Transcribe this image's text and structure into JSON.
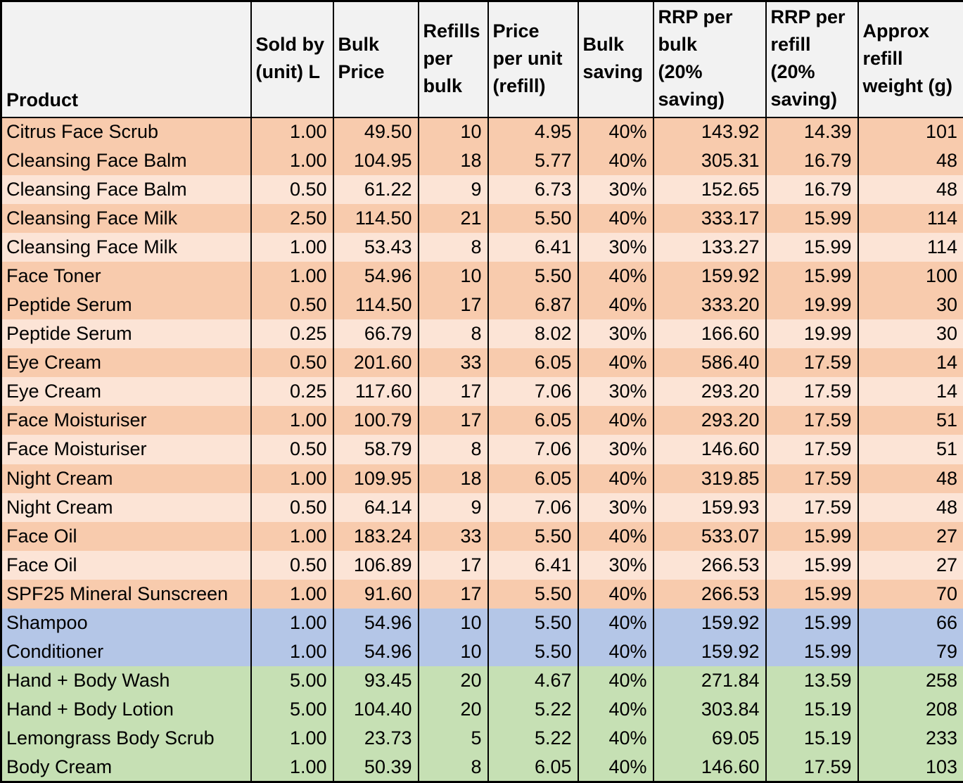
{
  "colors": {
    "header_bg": "#F2F2F2",
    "row_orange_dark": "#F8CBAD",
    "row_orange_light": "#FCE4D6",
    "row_blue": "#B4C6E7",
    "row_green": "#C6E0B4",
    "grid_border": "#000000",
    "text": "#000000"
  },
  "table": {
    "columns_display": [
      "Product",
      "Sold by\n(unit) L",
      "Bulk\nPrice",
      "Refills\nper\nbulk",
      "Price\nper unit\n(refill)",
      "Bulk\nsaving",
      "RRP per\nbulk\n(20%\nsaving)",
      "RRP per\nrefill\n(20%\nsaving)",
      "Approx\nrefill\nweight (g)"
    ]
  },
  "chart_data": {
    "type": "table",
    "title": "",
    "columns": [
      "Product",
      "Sold by (unit) L",
      "Bulk Price",
      "Refills per bulk",
      "Price per unit (refill)",
      "Bulk saving",
      "RRP per bulk (20% saving)",
      "RRP per refill (20% saving)",
      "Approx refill weight (g)"
    ],
    "rows": [
      {
        "tone": "orange",
        "cells": [
          "Citrus Face Scrub",
          "1.00",
          "49.50",
          "10",
          "4.95",
          "40%",
          "143.92",
          "14.39",
          "101"
        ]
      },
      {
        "tone": "orange",
        "cells": [
          "Cleansing Face Balm",
          "1.00",
          "104.95",
          "18",
          "5.77",
          "40%",
          "305.31",
          "16.79",
          "48"
        ]
      },
      {
        "tone": "orange-light",
        "cells": [
          "Cleansing Face Balm",
          "0.50",
          "61.22",
          "9",
          "6.73",
          "30%",
          "152.65",
          "16.79",
          "48"
        ]
      },
      {
        "tone": "orange",
        "cells": [
          "Cleansing Face Milk",
          "2.50",
          "114.50",
          "21",
          "5.50",
          "40%",
          "333.17",
          "15.99",
          "114"
        ]
      },
      {
        "tone": "orange-light",
        "cells": [
          "Cleansing Face Milk",
          "1.00",
          "53.43",
          "8",
          "6.41",
          "30%",
          "133.27",
          "15.99",
          "114"
        ]
      },
      {
        "tone": "orange",
        "cells": [
          "Face Toner",
          "1.00",
          "54.96",
          "10",
          "5.50",
          "40%",
          "159.92",
          "15.99",
          "100"
        ]
      },
      {
        "tone": "orange",
        "cells": [
          "Peptide Serum",
          "0.50",
          "114.50",
          "17",
          "6.87",
          "40%",
          "333.20",
          "19.99",
          "30"
        ]
      },
      {
        "tone": "orange-light",
        "cells": [
          "Peptide Serum",
          "0.25",
          "66.79",
          "8",
          "8.02",
          "30%",
          "166.60",
          "19.99",
          "30"
        ]
      },
      {
        "tone": "orange",
        "cells": [
          "Eye Cream",
          "0.50",
          "201.60",
          "33",
          "6.05",
          "40%",
          "586.40",
          "17.59",
          "14"
        ]
      },
      {
        "tone": "orange-light",
        "cells": [
          "Eye Cream",
          "0.25",
          "117.60",
          "17",
          "7.06",
          "30%",
          "293.20",
          "17.59",
          "14"
        ]
      },
      {
        "tone": "orange",
        "cells": [
          "Face Moisturiser",
          "1.00",
          "100.79",
          "17",
          "6.05",
          "40%",
          "293.20",
          "17.59",
          "51"
        ]
      },
      {
        "tone": "orange-light",
        "cells": [
          "Face Moisturiser",
          "0.50",
          "58.79",
          "8",
          "7.06",
          "30%",
          "146.60",
          "17.59",
          "51"
        ]
      },
      {
        "tone": "orange",
        "cells": [
          "Night Cream",
          "1.00",
          "109.95",
          "18",
          "6.05",
          "40%",
          "319.85",
          "17.59",
          "48"
        ]
      },
      {
        "tone": "orange-light",
        "cells": [
          "Night Cream",
          "0.50",
          "64.14",
          "9",
          "7.06",
          "30%",
          "159.93",
          "17.59",
          "48"
        ]
      },
      {
        "tone": "orange",
        "cells": [
          "Face Oil",
          "1.00",
          "183.24",
          "33",
          "5.50",
          "40%",
          "533.07",
          "15.99",
          "27"
        ]
      },
      {
        "tone": "orange-light",
        "cells": [
          "Face Oil",
          "0.50",
          "106.89",
          "17",
          "6.41",
          "30%",
          "266.53",
          "15.99",
          "27"
        ]
      },
      {
        "tone": "orange",
        "cells": [
          "SPF25 Mineral Sunscreen",
          "1.00",
          "91.60",
          "17",
          "5.50",
          "40%",
          "266.53",
          "15.99",
          "70"
        ]
      },
      {
        "tone": "blue",
        "cells": [
          "Shampoo",
          "1.00",
          "54.96",
          "10",
          "5.50",
          "40%",
          "159.92",
          "15.99",
          "66"
        ]
      },
      {
        "tone": "blue",
        "cells": [
          "Conditioner",
          "1.00",
          "54.96",
          "10",
          "5.50",
          "40%",
          "159.92",
          "15.99",
          "79"
        ]
      },
      {
        "tone": "green",
        "cells": [
          "Hand + Body Wash",
          "5.00",
          "93.45",
          "20",
          "4.67",
          "40%",
          "271.84",
          "13.59",
          "258"
        ]
      },
      {
        "tone": "green",
        "cells": [
          "Hand + Body Lotion",
          "5.00",
          "104.40",
          "20",
          "5.22",
          "40%",
          "303.84",
          "15.19",
          "208"
        ]
      },
      {
        "tone": "green",
        "cells": [
          "Lemongrass Body Scrub",
          "1.00",
          "23.73",
          "5",
          "5.22",
          "40%",
          "69.05",
          "15.19",
          "233"
        ]
      },
      {
        "tone": "green",
        "cells": [
          "Body Cream",
          "1.00",
          "50.39",
          "8",
          "6.05",
          "40%",
          "146.60",
          "17.59",
          "103"
        ]
      }
    ],
    "legend_note": "row color groups: orange = face care (dark = first size variant, light = second size variant), blue = hair care, green = body care",
    "grid": "vertical column gridlines only, no horizontal gridlines between data rows"
  }
}
